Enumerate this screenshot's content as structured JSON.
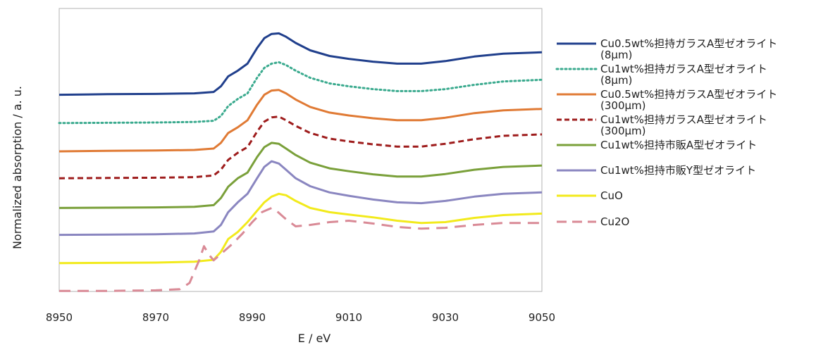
{
  "chart_data": {
    "type": "line",
    "title": "",
    "xlabel": "E / eV",
    "ylabel": "Normalized absorption / a. u.",
    "xlim": [
      8950,
      9050
    ],
    "xticks": [
      8950,
      8970,
      8990,
      9010,
      9030,
      9050
    ],
    "ylim": [
      0,
      10
    ],
    "grid": false,
    "legend_position": "right",
    "series": [
      {
        "name": "Cu0.5wt%担持ガラスA型ゼオライト (8μm)",
        "color": "#203f8c",
        "dash": "solid",
        "x": [
          8950,
          8960,
          8970,
          8978,
          8982,
          8983.5,
          8985,
          8987,
          8989,
          8991,
          8992.5,
          8994,
          8995.5,
          8997,
          8999,
          9002,
          9006,
          9010,
          9015,
          9020,
          9025,
          9030,
          9036,
          9042,
          9050
        ],
        "y": [
          6.95,
          6.97,
          6.98,
          7.0,
          7.05,
          7.25,
          7.6,
          7.8,
          8.05,
          8.6,
          8.95,
          9.1,
          9.12,
          9.0,
          8.78,
          8.52,
          8.32,
          8.22,
          8.12,
          8.05,
          8.05,
          8.14,
          8.3,
          8.4,
          8.45
        ]
      },
      {
        "name": "Cu1wt%担持ガラスA型ゼオライト (8μm)",
        "color": "#3aaa8e",
        "dash": "dotted",
        "x": [
          8950,
          8960,
          8970,
          8978,
          8982,
          8983.5,
          8985,
          8987,
          8989,
          8991,
          8992.5,
          8994,
          8995.5,
          8997,
          8999,
          9002,
          9006,
          9010,
          9015,
          9020,
          9025,
          9030,
          9036,
          9042,
          9050
        ],
        "y": [
          5.95,
          5.96,
          5.97,
          5.99,
          6.03,
          6.2,
          6.55,
          6.8,
          7.0,
          7.55,
          7.9,
          8.05,
          8.1,
          8.0,
          7.8,
          7.55,
          7.35,
          7.25,
          7.15,
          7.08,
          7.08,
          7.15,
          7.3,
          7.42,
          7.48
        ]
      },
      {
        "name": "Cu0.5wt%担持ガラスA型ゼオライト (300μm)",
        "color": "#e07a34",
        "dash": "solid",
        "x": [
          8950,
          8960,
          8970,
          8978,
          8982,
          8983.5,
          8985,
          8987,
          8989,
          8991,
          8992.5,
          8994,
          8995.5,
          8997,
          8999,
          9002,
          9006,
          9010,
          9015,
          9020,
          9025,
          9030,
          9036,
          9042,
          9050
        ],
        "y": [
          4.95,
          4.97,
          4.98,
          5.0,
          5.05,
          5.25,
          5.6,
          5.8,
          6.05,
          6.6,
          6.95,
          7.1,
          7.12,
          7.0,
          6.78,
          6.52,
          6.32,
          6.22,
          6.12,
          6.05,
          6.05,
          6.14,
          6.3,
          6.4,
          6.45
        ]
      },
      {
        "name": "Cu1wt%担持ガラスA型ゼオライト (300μm)",
        "color": "#9e1c1c",
        "dash": "dashed",
        "x": [
          8950,
          8960,
          8970,
          8978,
          8982,
          8983.5,
          8985,
          8987,
          8989,
          8991,
          8992.5,
          8994,
          8995.5,
          8997,
          8999,
          9002,
          9006,
          9010,
          9015,
          9020,
          9025,
          9030,
          9036,
          9042,
          9050
        ],
        "y": [
          4.0,
          4.01,
          4.02,
          4.04,
          4.1,
          4.3,
          4.65,
          4.9,
          5.1,
          5.65,
          6.0,
          6.15,
          6.18,
          6.05,
          5.85,
          5.6,
          5.4,
          5.3,
          5.2,
          5.12,
          5.12,
          5.22,
          5.38,
          5.5,
          5.55
        ]
      },
      {
        "name": "Cu1wt%担持市販A型ゼオライト",
        "color": "#7aa03a",
        "dash": "solid",
        "x": [
          8950,
          8960,
          8970,
          8978,
          8982,
          8983.5,
          8985,
          8987,
          8989,
          8991,
          8992.5,
          8994,
          8995.5,
          8997,
          8999,
          9002,
          9006,
          9010,
          9015,
          9020,
          9025,
          9030,
          9036,
          9042,
          9050
        ],
        "y": [
          2.95,
          2.96,
          2.97,
          2.99,
          3.05,
          3.3,
          3.7,
          4.0,
          4.2,
          4.75,
          5.1,
          5.25,
          5.22,
          5.05,
          4.82,
          4.55,
          4.35,
          4.25,
          4.14,
          4.06,
          4.06,
          4.15,
          4.3,
          4.4,
          4.45
        ]
      },
      {
        "name": "Cu1wt%担持市販Y型ゼオライト",
        "color": "#8a86c0",
        "dash": "solid",
        "x": [
          8950,
          8960,
          8970,
          8978,
          8982,
          8983.5,
          8985,
          8987,
          8989,
          8991,
          8992.5,
          8994,
          8995.5,
          8997,
          8999,
          9002,
          9006,
          9010,
          9015,
          9020,
          9025,
          9030,
          9036,
          9042,
          9050
        ],
        "y": [
          2.0,
          2.01,
          2.02,
          2.05,
          2.12,
          2.35,
          2.8,
          3.15,
          3.45,
          4.0,
          4.4,
          4.6,
          4.52,
          4.3,
          4.0,
          3.72,
          3.5,
          3.38,
          3.25,
          3.15,
          3.12,
          3.2,
          3.35,
          3.45,
          3.5
        ]
      },
      {
        "name": "CuO",
        "color": "#f2ea1c",
        "dash": "solid",
        "x": [
          8950,
          8960,
          8970,
          8978,
          8982,
          8983.5,
          8985,
          8987,
          8989,
          8991,
          8992.5,
          8994,
          8995.5,
          8997,
          8999,
          9002,
          9006,
          9010,
          9015,
          9020,
          9025,
          9030,
          9036,
          9042,
          9050
        ],
        "y": [
          1.0,
          1.01,
          1.02,
          1.05,
          1.12,
          1.4,
          1.85,
          2.1,
          2.45,
          2.85,
          3.15,
          3.35,
          3.45,
          3.4,
          3.2,
          2.95,
          2.8,
          2.72,
          2.62,
          2.5,
          2.42,
          2.45,
          2.6,
          2.7,
          2.75
        ]
      },
      {
        "name": "Cu2O",
        "color": "#d98a96",
        "dash": "longdash",
        "x": [
          8950,
          8960,
          8970,
          8975,
          8977,
          8979,
          8980,
          8981,
          8982,
          8984,
          8986,
          8988,
          8990,
          8992,
          8994,
          8995,
          8997,
          8999,
          9002,
          9006,
          9010,
          9015,
          9020,
          9025,
          9030,
          9036,
          9042,
          9050
        ],
        "y": [
          0.02,
          0.02,
          0.04,
          0.08,
          0.3,
          1.1,
          1.6,
          1.3,
          1.1,
          1.4,
          1.7,
          2.05,
          2.45,
          2.8,
          2.95,
          2.85,
          2.55,
          2.3,
          2.35,
          2.45,
          2.5,
          2.4,
          2.28,
          2.22,
          2.25,
          2.35,
          2.42,
          2.42
        ]
      }
    ]
  }
}
